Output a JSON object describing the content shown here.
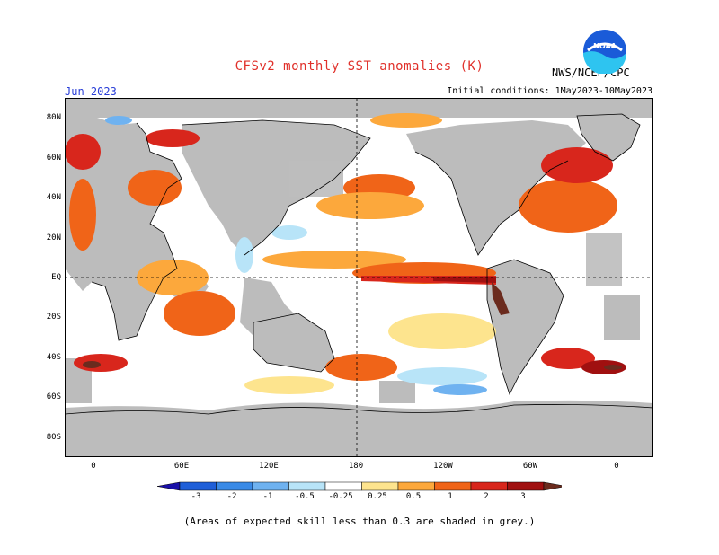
{
  "header": {
    "title": "CFSv2 monthly SST anomalies (K)",
    "month": "Jun 2023",
    "initial_conditions": "Initial conditions: 1May2023-10May2023",
    "agency": "NWS/NCEP/CPC",
    "logo_text": "NOAA"
  },
  "map": {
    "lat_labels": [
      "80N",
      "60N",
      "40N",
      "20N",
      "EQ",
      "20S",
      "40S",
      "60S",
      "80S"
    ],
    "lon_labels": [
      "0",
      "60E",
      "120E",
      "180",
      "120W",
      "60W",
      "0"
    ],
    "land_color": "#bcbcbc",
    "ocean_neutral_color": "#ffffff"
  },
  "colorbar": {
    "labels": [
      "-3",
      "-2",
      "-1",
      "-0.5",
      "-0.25",
      "0.25",
      "0.5",
      "1",
      "2",
      "3"
    ],
    "colors": [
      "#1a10a8",
      "#1f5fd8",
      "#3a8ae6",
      "#6fb2f0",
      "#b8e4f8",
      "#ffffff",
      "#fde48e",
      "#fca83c",
      "#f06418",
      "#d8261c",
      "#a01010",
      "#6b2b1e"
    ]
  },
  "footnote": "(Areas of expected skill less than 0.3 are shaded in grey.)"
}
